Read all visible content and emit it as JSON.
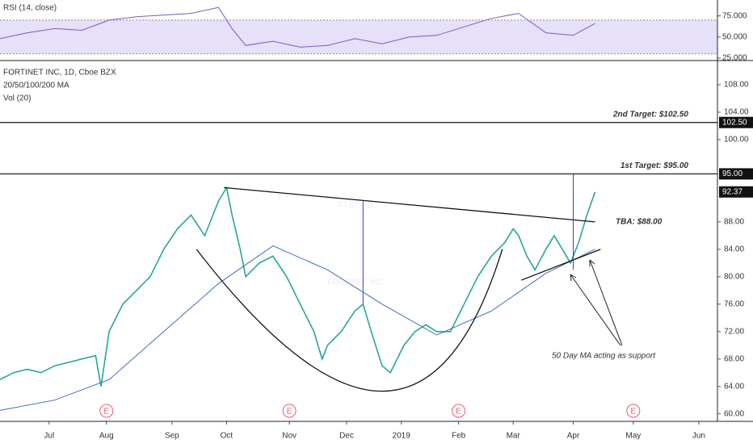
{
  "chart_data": [
    {
      "type": "line",
      "title": "RSI (14, close)",
      "x": [
        0,
        10,
        20,
        30,
        40,
        50,
        60,
        70,
        80,
        85,
        90,
        100,
        110,
        120,
        130,
        140,
        150,
        160,
        170,
        180,
        190,
        200,
        210,
        218
      ],
      "series": [
        {
          "color": "#7e57c2",
          "values": [
            48,
            55,
            60,
            58,
            70,
            74,
            76,
            78,
            85,
            60,
            40,
            45,
            38,
            40,
            48,
            42,
            50,
            52,
            62,
            72,
            78,
            55,
            52,
            66
          ]
        }
      ],
      "ylim": [
        25,
        90
      ],
      "yticks": [
        {
          "value": 75,
          "label": "75.000"
        },
        {
          "value": 50,
          "label": "50.000"
        },
        {
          "value": 25,
          "label": "25.000"
        }
      ],
      "band": [
        30,
        70
      ],
      "band_color": "#e6e0f8"
    },
    {
      "type": "line",
      "title": "FORTINET INC, 1D, Cboe BZX",
      "indicators": [
        "20/50/100/200 MA",
        "Vol (20)"
      ],
      "watermark": "FTNT, 1D",
      "watermark_subtitle": "FORTINET INC",
      "x": [
        0,
        5,
        10,
        15,
        20,
        25,
        30,
        35,
        37,
        40,
        45,
        50,
        55,
        60,
        65,
        70,
        75,
        80,
        83,
        85,
        88,
        90,
        95,
        100,
        105,
        110,
        115,
        118,
        120,
        125,
        130,
        133,
        136,
        140,
        143,
        148,
        152,
        156,
        160,
        165,
        170,
        175,
        180,
        185,
        188,
        190,
        193,
        196,
        200,
        203,
        206,
        209,
        212,
        215,
        218
      ],
      "series": [
        {
          "color": "#26a69a",
          "values": [
            65,
            66,
            66.5,
            66,
            67,
            67.5,
            68,
            68.5,
            64,
            72,
            76,
            78,
            80,
            84,
            87,
            89,
            86,
            91,
            93,
            89,
            84,
            80,
            82,
            83,
            80,
            76,
            72,
            68,
            70,
            72,
            75,
            76,
            72,
            67,
            66,
            70,
            72,
            73,
            72,
            72,
            76,
            80,
            83,
            85,
            87,
            86,
            83,
            81,
            84,
            86,
            84,
            82,
            85,
            89,
            92.37
          ]
        },
        {
          "color": "#3d6bc4",
          "x": [
            0,
            20,
            40,
            60,
            80,
            100,
            120,
            140,
            160,
            180,
            200,
            218
          ],
          "values": [
            60.5,
            62,
            65,
            72,
            79,
            84.5,
            81,
            76,
            71.5,
            75,
            80.5,
            84
          ]
        }
      ],
      "xlim": [
        0,
        262
      ],
      "xticks": [
        {
          "value": 18,
          "label": "Jul"
        },
        {
          "value": 39,
          "label": "Aug"
        },
        {
          "value": 63,
          "label": "Sep"
        },
        {
          "value": 83,
          "label": "Oct"
        },
        {
          "value": 106,
          "label": "Nov"
        },
        {
          "value": 127,
          "label": "Dec"
        },
        {
          "value": 147,
          "label": "2019"
        },
        {
          "value": 168,
          "label": "Feb"
        },
        {
          "value": 188,
          "label": "Mar"
        },
        {
          "value": 210,
          "label": "Apr"
        },
        {
          "value": 232,
          "label": "May"
        },
        {
          "value": 256,
          "label": "Jun"
        }
      ],
      "ylim": [
        58.9,
        111.3
      ],
      "yticks": [
        {
          "value": 60,
          "label": "60.00"
        },
        {
          "value": 64,
          "label": "64.00"
        },
        {
          "value": 68,
          "label": "68.00"
        },
        {
          "value": 72,
          "label": "72.00"
        },
        {
          "value": 76,
          "label": "76.00"
        },
        {
          "value": 80,
          "label": "80.00"
        },
        {
          "value": 84,
          "label": "84.00"
        },
        {
          "value": 88,
          "label": "88.00"
        },
        {
          "value": 100,
          "label": "100.00"
        },
        {
          "value": 104,
          "label": "104.00"
        },
        {
          "value": 108,
          "label": "108.00"
        }
      ],
      "levels": [
        {
          "value": 102.5,
          "label": "102.50",
          "text": "2nd Target: $102.50"
        },
        {
          "value": 95,
          "label": "95.00",
          "text": "1st Target: $95.00"
        }
      ],
      "last_price": {
        "value": 92.37,
        "label": "92.37"
      },
      "tba": {
        "x": 222,
        "value": 88,
        "text": "TBA: $88.00"
      },
      "support_note": "50 Day MA acting as support",
      "trendlines": [
        {
          "x": [
            82,
            218
          ],
          "y": [
            93,
            88
          ]
        },
        {
          "x": [
            191,
            220
          ],
          "y": [
            79.5,
            84
          ]
        }
      ],
      "cup": {
        "x": [
          72,
          140,
          184
        ],
        "y": [
          84,
          63.3,
          84
        ]
      },
      "measures": [
        {
          "x": 133,
          "y": [
            91,
            76
          ]
        },
        {
          "x": 210,
          "y": [
            95,
            81
          ]
        }
      ],
      "earnings": {
        "x": [
          39,
          106,
          168,
          232
        ],
        "labels": [
          "E",
          "E",
          "E",
          "E"
        ]
      }
    }
  ]
}
